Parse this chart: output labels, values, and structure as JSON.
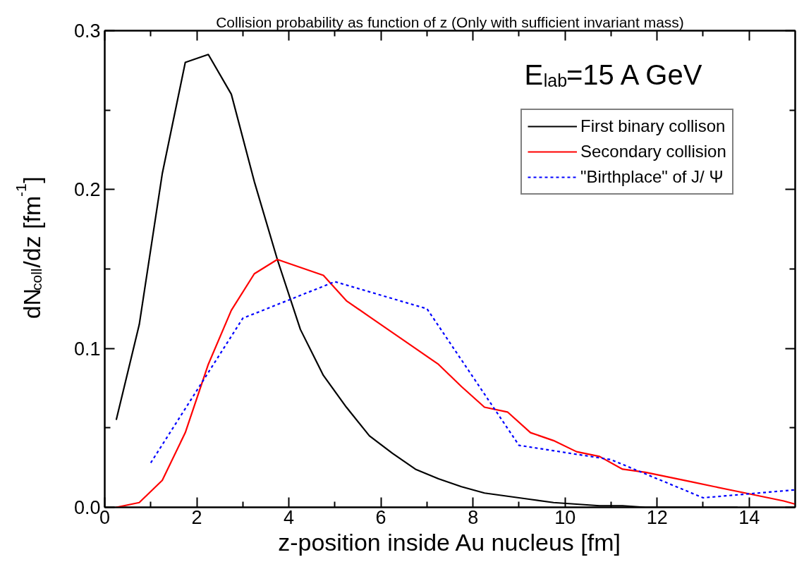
{
  "chart_data": {
    "type": "line",
    "title": "Collision probability as function of z (Only with sufficient invariant mass)",
    "xlabel": "z-position inside Au nucleus [fm]",
    "ylabel": "dN$_{coll}$/dz [fm$^{-1}$]",
    "annotations": [
      "E$_{lab}$=15 A GeV"
    ],
    "xlim": [
      0,
      15
    ],
    "xticks": [
      0,
      {
        "value": 1,
        "label": null
      },
      2,
      {
        "value": 3,
        "label": null
      },
      4,
      {
        "value": 5,
        "label": null
      },
      6,
      {
        "value": 7,
        "label": null
      },
      8,
      {
        "value": 9,
        "label": null
      },
      10,
      {
        "value": 11,
        "label": null
      },
      12,
      {
        "value": 13,
        "label": null
      },
      14
    ],
    "ylim": [
      0,
      0.3
    ],
    "yticks": [
      {
        "value": 0,
        "label": "0.0"
      },
      {
        "value": 0.05,
        "label": null
      },
      0.1,
      {
        "value": 0.15,
        "label": null
      },
      0.2,
      {
        "value": 0.25,
        "label": null
      },
      0.3
    ],
    "grid": false,
    "legend": "top right",
    "series": [
      {
        "name": "First binary collison",
        "color": "#000000",
        "line_style": "solid",
        "x": [
          0.25,
          0.75,
          1.25,
          1.75,
          2.25,
          2.75,
          3.25,
          3.75,
          4.25,
          4.75,
          5.25,
          5.75,
          6.25,
          6.75,
          7.25,
          7.75,
          8.25,
          8.75,
          9.25,
          9.75,
          10.25,
          10.75,
          11.25,
          11.75,
          12.25,
          12.75,
          13.25,
          13.75
        ],
        "values": [
          0.055,
          0.115,
          0.21,
          0.28,
          0.285,
          0.26,
          0.205,
          0.156,
          0.112,
          0.083,
          0.063,
          0.045,
          0.034,
          0.024,
          0.018,
          0.013,
          0.009,
          0.007,
          0.005,
          0.003,
          0.002,
          0.001,
          0.001,
          0,
          0,
          0,
          0,
          0
        ]
      },
      {
        "name": "Secondary collision",
        "color": "#ff0000",
        "line_style": "solid",
        "x": [
          0.25,
          0.75,
          1.25,
          1.75,
          2.25,
          2.75,
          3.25,
          3.75,
          4.25,
          4.75,
          5.25,
          5.75,
          6.25,
          6.75,
          7.25,
          7.75,
          8.25,
          8.75,
          9.25,
          9.75,
          10.25,
          10.75,
          11.25,
          11.75,
          12.25,
          12.75,
          13.25,
          13.75,
          14.25,
          14.75,
          15
        ],
        "values": [
          0,
          0.003,
          0.017,
          0.047,
          0.09,
          0.124,
          0.147,
          0.156,
          0.151,
          0.146,
          0.13,
          0.12,
          0.11,
          0.1,
          0.09,
          0.076,
          0.063,
          0.06,
          0.047,
          0.042,
          0.035,
          0.032,
          0.024,
          0.022,
          0.019,
          0.016,
          0.013,
          0.01,
          0.007,
          0.004,
          0.002
        ]
      },
      {
        "name": "\"Birthplace\" of J/ Ψ",
        "color": "#0000ff",
        "line_style": "dotted",
        "x": [
          1,
          3,
          5,
          7,
          9,
          11,
          13,
          15
        ],
        "values": [
          0.028,
          0.119,
          0.142,
          0.125,
          0.039,
          0.03,
          0.006,
          0.011
        ]
      }
    ]
  }
}
